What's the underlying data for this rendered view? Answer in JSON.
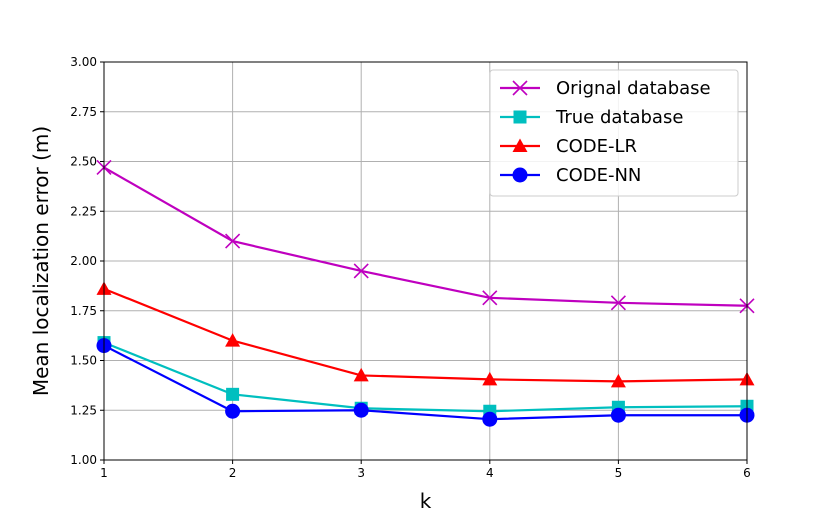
{
  "chart_data": {
    "type": "line",
    "xlabel": "k",
    "ylabel": "Mean localization error (m)",
    "x": [
      1,
      2,
      3,
      4,
      5,
      6
    ],
    "xlim": [
      1,
      6
    ],
    "ylim": [
      1.0,
      3.0
    ],
    "x_ticks": [
      "1",
      "2",
      "3",
      "4",
      "5",
      "6"
    ],
    "y_ticks": [
      "1.00",
      "1.25",
      "1.50",
      "1.75",
      "2.00",
      "2.25",
      "2.50",
      "2.75",
      "3.00"
    ],
    "grid": true,
    "legend_position": "top-right",
    "series": [
      {
        "name": "Orignal database",
        "color": "#bf00bf",
        "marker": "x",
        "values": [
          2.47,
          2.1,
          1.95,
          1.815,
          1.79,
          1.775
        ]
      },
      {
        "name": "True database",
        "color": "#00bfbf",
        "marker": "square",
        "values": [
          1.59,
          1.33,
          1.26,
          1.245,
          1.265,
          1.27
        ]
      },
      {
        "name": "CODE-LR",
        "color": "#ff0000",
        "marker": "triangle",
        "values": [
          1.86,
          1.6,
          1.425,
          1.405,
          1.395,
          1.405
        ]
      },
      {
        "name": "CODE-NN",
        "color": "#0000ff",
        "marker": "circle",
        "values": [
          1.575,
          1.245,
          1.25,
          1.205,
          1.225,
          1.225
        ]
      }
    ]
  }
}
